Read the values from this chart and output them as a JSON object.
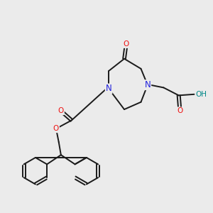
{
  "background_color": "#ebebeb",
  "figsize": [
    3.0,
    3.0
  ],
  "dpi": 100,
  "bond_color": "#1a1a1a",
  "bond_width": 1.4,
  "atom_colors": {
    "N": "#2222dd",
    "O": "#ee1111",
    "OH": "#008888",
    "C": "#1a1a1a"
  },
  "font_size_atom": 7.5
}
